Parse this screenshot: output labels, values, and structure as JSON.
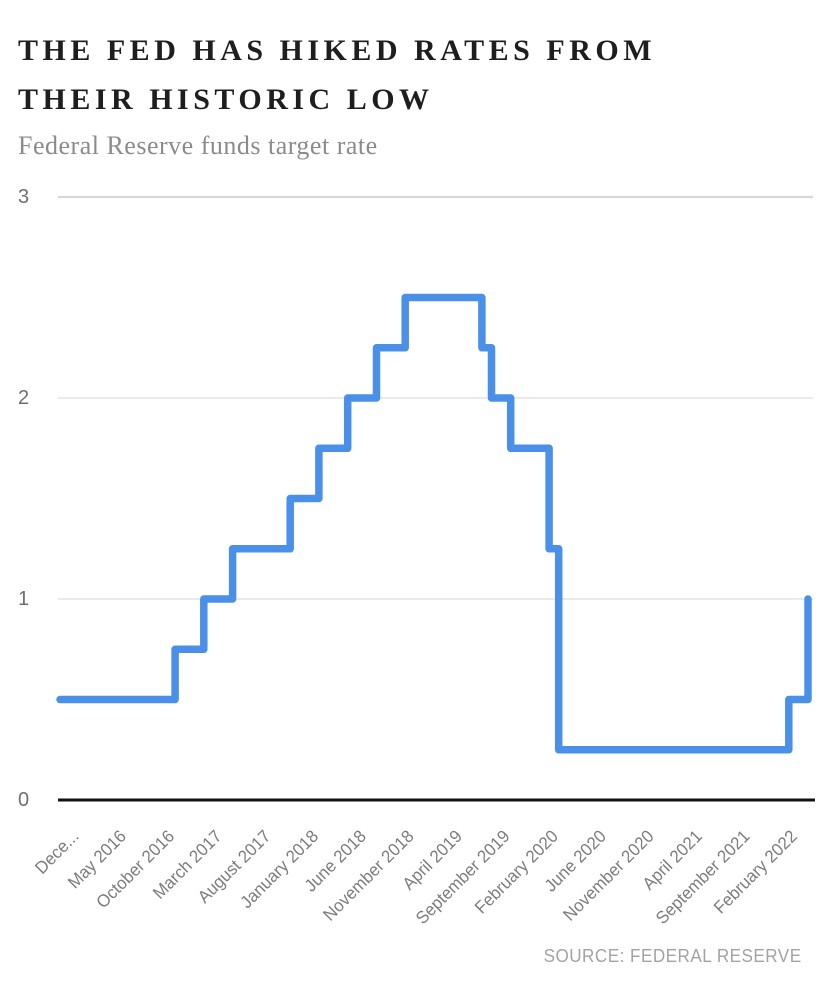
{
  "header": {
    "title_line1": "THE FED HAS HIKED RATES FROM",
    "title_line2": "THEIR HISTORIC LOW",
    "subtitle": "Federal Reserve funds target rate"
  },
  "footer": {
    "source": "SOURCE: FEDERAL RESERVE"
  },
  "chart_data": {
    "type": "line",
    "subtype": "step",
    "title": "THE FED HAS HIKED RATES FROM THEIR HISTORIC LOW",
    "subtitle": "Federal Reserve funds target rate",
    "source": "SOURCE: FEDERAL RESERVE",
    "xlabel": "",
    "ylabel": "",
    "ylim": [
      0,
      3
    ],
    "yticks": [
      0,
      1,
      2,
      3
    ],
    "grid": "horizontal gridlines at y=1,2,3; black baseline at y=0",
    "legend": "none",
    "line_color": "#4a90e8",
    "grid_color": "#dedede",
    "axis_color": "#111111",
    "x_axis_note": "monthly categories from December 2015 to May 2022, March 2020 appears twice (two rate changes)",
    "x_total_intervals": 78,
    "x_tick_positions": [
      0,
      5,
      10,
      15,
      20,
      25,
      30,
      35,
      40,
      45,
      50,
      55,
      60,
      65,
      70,
      75
    ],
    "x_tick_labels": [
      "Dece...",
      "May 2016",
      "October 2016",
      "March 2017",
      "August 2017",
      "January 2018",
      "June 2018",
      "November 2018",
      "April 2019",
      "September 2019",
      "February 2020",
      "June 2020",
      "November 2020",
      "April 2021",
      "September 2021",
      "February 2022"
    ],
    "series": [
      {
        "name": "Federal Reserve funds target rate",
        "points": [
          {
            "x": 0,
            "date": "December 2015",
            "rate": 0.5
          },
          {
            "x": 12,
            "date": "December 2016",
            "rate": 0.75
          },
          {
            "x": 15,
            "date": "March 2017",
            "rate": 1.0
          },
          {
            "x": 18,
            "date": "June 2017",
            "rate": 1.25
          },
          {
            "x": 24,
            "date": "December 2017",
            "rate": 1.5
          },
          {
            "x": 27,
            "date": "March 2018",
            "rate": 1.75
          },
          {
            "x": 30,
            "date": "June 2018",
            "rate": 2.0
          },
          {
            "x": 33,
            "date": "September 2018",
            "rate": 2.25
          },
          {
            "x": 36,
            "date": "December 2018",
            "rate": 2.5
          },
          {
            "x": 44,
            "date": "August 2019",
            "rate": 2.25
          },
          {
            "x": 45,
            "date": "September 2019",
            "rate": 2.0
          },
          {
            "x": 47,
            "date": "November 2019",
            "rate": 1.75
          },
          {
            "x": 51,
            "date": "March 2020",
            "rate": 1.25
          },
          {
            "x": 52,
            "date": "March 2020",
            "rate": 0.25
          },
          {
            "x": 76,
            "date": "March 2022",
            "rate": 0.5
          },
          {
            "x": 78,
            "date": "May 2022",
            "rate": 1.0
          }
        ]
      }
    ]
  }
}
